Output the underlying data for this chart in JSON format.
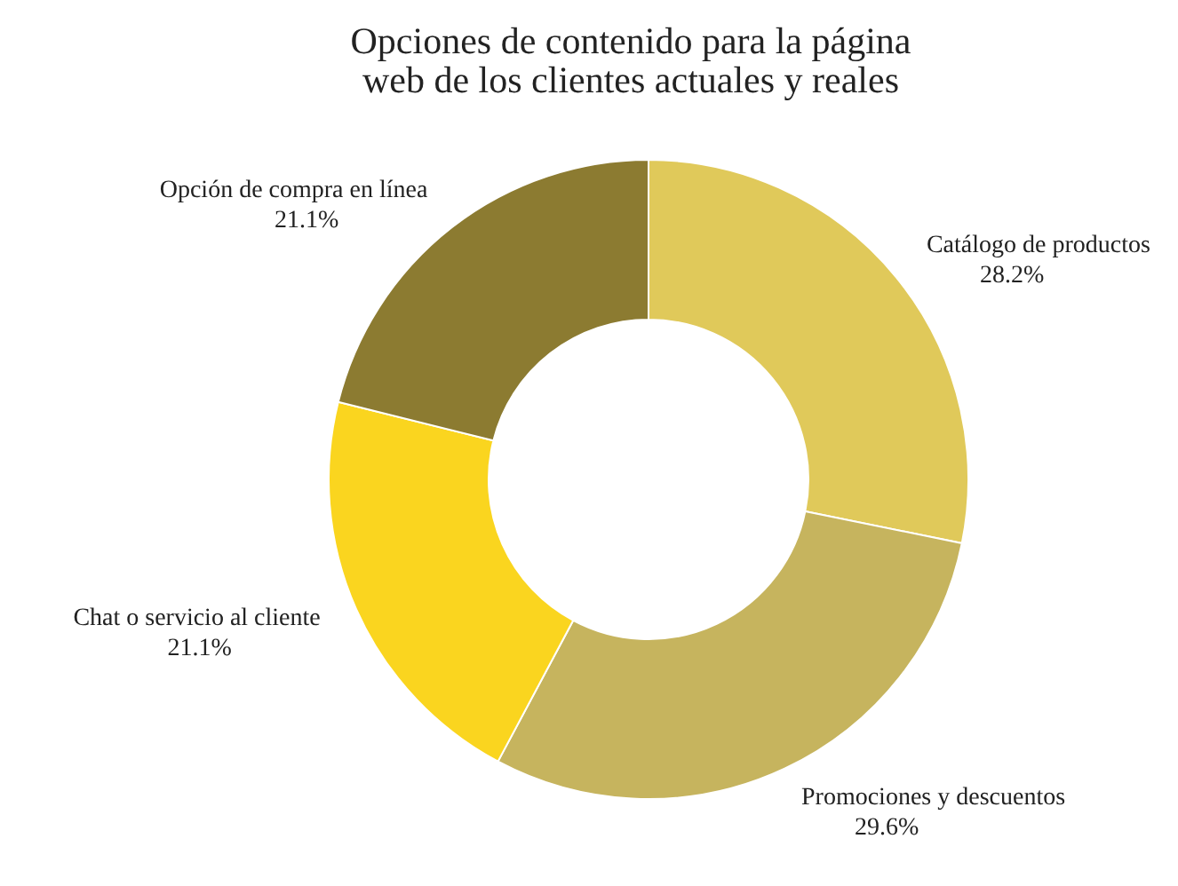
{
  "chart_data": {
    "type": "donut",
    "title": "Opciones de contenido para la página\nweb de los clientes actuales y reales",
    "categories": [
      "Catálogo de productos",
      "Promociones y descuentos",
      "Chat o servicio al cliente",
      "Opción de compra en línea"
    ],
    "values": [
      28.2,
      29.6,
      21.1,
      21.1
    ],
    "value_labels": [
      "28.2%",
      "29.6%",
      "21.1%",
      "21.1%"
    ],
    "colors": [
      "#e0c95a",
      "#c6b45e",
      "#fad51f",
      "#8c7b31"
    ]
  }
}
